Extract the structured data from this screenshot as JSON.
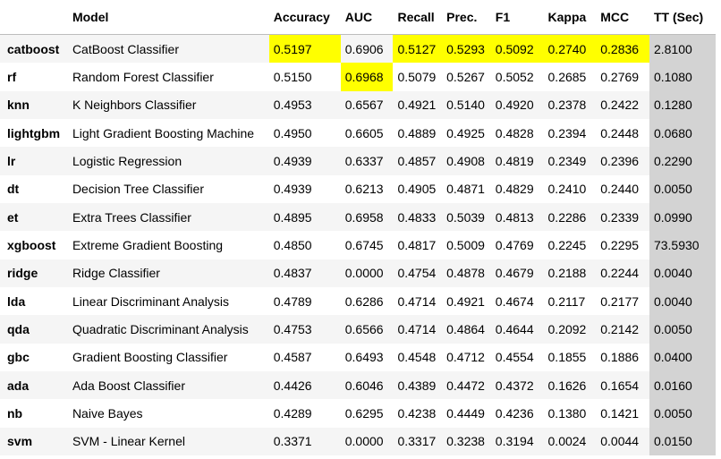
{
  "table": {
    "columns": [
      "",
      "Model",
      "Accuracy",
      "AUC",
      "Recall",
      "Prec.",
      "F1",
      "Kappa",
      "MCC",
      "TT (Sec)"
    ],
    "highlight_color": "#ffff00",
    "tt_column_color": "#d3d3d3",
    "rows": [
      {
        "id": "catboost",
        "model": "CatBoost Classifier",
        "accuracy": "0.5197",
        "auc": "0.6906",
        "recall": "0.5127",
        "prec": "0.5293",
        "f1": "0.5092",
        "kappa": "0.2740",
        "mcc": "0.2836",
        "tt": "2.8100",
        "highlight": [
          "accuracy",
          "recall",
          "prec",
          "f1",
          "kappa",
          "mcc"
        ]
      },
      {
        "id": "rf",
        "model": "Random Forest Classifier",
        "accuracy": "0.5150",
        "auc": "0.6968",
        "recall": "0.5079",
        "prec": "0.5267",
        "f1": "0.5052",
        "kappa": "0.2685",
        "mcc": "0.2769",
        "tt": "0.1080",
        "highlight": [
          "auc"
        ]
      },
      {
        "id": "knn",
        "model": "K Neighbors Classifier",
        "accuracy": "0.4953",
        "auc": "0.6567",
        "recall": "0.4921",
        "prec": "0.5140",
        "f1": "0.4920",
        "kappa": "0.2378",
        "mcc": "0.2422",
        "tt": "0.1280",
        "highlight": []
      },
      {
        "id": "lightgbm",
        "model": "Light Gradient Boosting Machine",
        "accuracy": "0.4950",
        "auc": "0.6605",
        "recall": "0.4889",
        "prec": "0.4925",
        "f1": "0.4828",
        "kappa": "0.2394",
        "mcc": "0.2448",
        "tt": "0.0680",
        "highlight": []
      },
      {
        "id": "lr",
        "model": "Logistic Regression",
        "accuracy": "0.4939",
        "auc": "0.6337",
        "recall": "0.4857",
        "prec": "0.4908",
        "f1": "0.4819",
        "kappa": "0.2349",
        "mcc": "0.2396",
        "tt": "0.2290",
        "highlight": []
      },
      {
        "id": "dt",
        "model": "Decision Tree Classifier",
        "accuracy": "0.4939",
        "auc": "0.6213",
        "recall": "0.4905",
        "prec": "0.4871",
        "f1": "0.4829",
        "kappa": "0.2410",
        "mcc": "0.2440",
        "tt": "0.0050",
        "highlight": []
      },
      {
        "id": "et",
        "model": "Extra Trees Classifier",
        "accuracy": "0.4895",
        "auc": "0.6958",
        "recall": "0.4833",
        "prec": "0.5039",
        "f1": "0.4813",
        "kappa": "0.2286",
        "mcc": "0.2339",
        "tt": "0.0990",
        "highlight": []
      },
      {
        "id": "xgboost",
        "model": "Extreme Gradient Boosting",
        "accuracy": "0.4850",
        "auc": "0.6745",
        "recall": "0.4817",
        "prec": "0.5009",
        "f1": "0.4769",
        "kappa": "0.2245",
        "mcc": "0.2295",
        "tt": "73.5930",
        "highlight": []
      },
      {
        "id": "ridge",
        "model": "Ridge Classifier",
        "accuracy": "0.4837",
        "auc": "0.0000",
        "recall": "0.4754",
        "prec": "0.4878",
        "f1": "0.4679",
        "kappa": "0.2188",
        "mcc": "0.2244",
        "tt": "0.0040",
        "highlight": []
      },
      {
        "id": "lda",
        "model": "Linear Discriminant Analysis",
        "accuracy": "0.4789",
        "auc": "0.6286",
        "recall": "0.4714",
        "prec": "0.4921",
        "f1": "0.4674",
        "kappa": "0.2117",
        "mcc": "0.2177",
        "tt": "0.0040",
        "highlight": []
      },
      {
        "id": "qda",
        "model": "Quadratic Discriminant Analysis",
        "accuracy": "0.4753",
        "auc": "0.6566",
        "recall": "0.4714",
        "prec": "0.4864",
        "f1": "0.4644",
        "kappa": "0.2092",
        "mcc": "0.2142",
        "tt": "0.0050",
        "highlight": []
      },
      {
        "id": "gbc",
        "model": "Gradient Boosting Classifier",
        "accuracy": "0.4587",
        "auc": "0.6493",
        "recall": "0.4548",
        "prec": "0.4712",
        "f1": "0.4554",
        "kappa": "0.1855",
        "mcc": "0.1886",
        "tt": "0.0400",
        "highlight": []
      },
      {
        "id": "ada",
        "model": "Ada Boost Classifier",
        "accuracy": "0.4426",
        "auc": "0.6046",
        "recall": "0.4389",
        "prec": "0.4472",
        "f1": "0.4372",
        "kappa": "0.1626",
        "mcc": "0.1654",
        "tt": "0.0160",
        "highlight": []
      },
      {
        "id": "nb",
        "model": "Naive Bayes",
        "accuracy": "0.4289",
        "auc": "0.6295",
        "recall": "0.4238",
        "prec": "0.4449",
        "f1": "0.4236",
        "kappa": "0.1380",
        "mcc": "0.1421",
        "tt": "0.0050",
        "highlight": []
      },
      {
        "id": "svm",
        "model": "SVM - Linear Kernel",
        "accuracy": "0.3371",
        "auc": "0.0000",
        "recall": "0.3317",
        "prec": "0.3238",
        "f1": "0.3194",
        "kappa": "0.0024",
        "mcc": "0.0044",
        "tt": "0.0150",
        "highlight": []
      }
    ]
  }
}
